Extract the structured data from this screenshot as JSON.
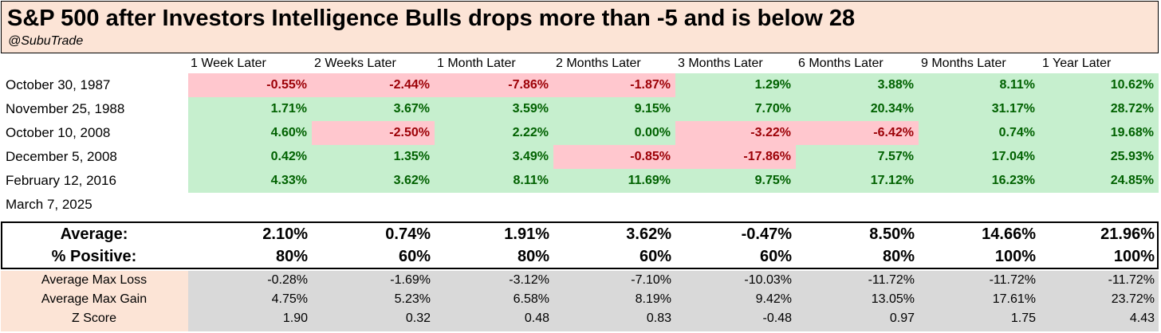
{
  "title": "S&P 500 after Investors Intelligence Bulls drops more than -5 and is below 28",
  "subtitle": "@SubuTrade",
  "chart_data": {
    "type": "table",
    "columns": [
      "1 Week Later",
      "2 Weeks Later",
      "1 Month Later",
      "2 Months Later",
      "3 Months Later",
      "6 Months Later",
      "9 Months Later",
      "1 Year Later"
    ],
    "rows": [
      {
        "date": "October 30, 1987",
        "values": [
          "-0.55%",
          "-2.44%",
          "-7.86%",
          "-1.87%",
          "1.29%",
          "3.88%",
          "8.11%",
          "10.62%"
        ]
      },
      {
        "date": "November 25, 1988",
        "values": [
          "1.71%",
          "3.67%",
          "3.59%",
          "9.15%",
          "7.70%",
          "20.34%",
          "31.17%",
          "28.72%"
        ]
      },
      {
        "date": "October 10, 2008",
        "values": [
          "4.60%",
          "-2.50%",
          "2.22%",
          "0.00%",
          "-3.22%",
          "-6.42%",
          "0.74%",
          "19.68%"
        ]
      },
      {
        "date": "December 5, 2008",
        "values": [
          "0.42%",
          "1.35%",
          "3.49%",
          "-0.85%",
          "-17.86%",
          "7.57%",
          "17.04%",
          "25.93%"
        ]
      },
      {
        "date": "February 12, 2016",
        "values": [
          "4.33%",
          "3.62%",
          "8.11%",
          "11.69%",
          "9.75%",
          "17.12%",
          "16.23%",
          "24.85%"
        ]
      },
      {
        "date": "March 7, 2025",
        "values": [
          "",
          "",
          "",
          "",
          "",
          "",
          "",
          ""
        ]
      }
    ],
    "summary": [
      {
        "label": "Average:",
        "values": [
          "2.10%",
          "0.74%",
          "1.91%",
          "3.62%",
          "-0.47%",
          "8.50%",
          "14.66%",
          "21.96%"
        ]
      },
      {
        "label": "% Positive:",
        "values": [
          "80%",
          "60%",
          "80%",
          "60%",
          "60%",
          "80%",
          "100%",
          "100%"
        ]
      }
    ],
    "stats": [
      {
        "label": "Average Max Loss",
        "values": [
          "-0.28%",
          "-1.69%",
          "-3.12%",
          "-7.10%",
          "-10.03%",
          "-11.72%",
          "-11.72%",
          "-11.72%"
        ]
      },
      {
        "label": "Average Max Gain",
        "values": [
          "4.75%",
          "5.23%",
          "6.58%",
          "8.19%",
          "9.42%",
          "13.05%",
          "17.61%",
          "23.72%"
        ]
      },
      {
        "label": "Z Score",
        "values": [
          "1.90",
          "0.32",
          "0.48",
          "0.83",
          "-0.48",
          "0.97",
          "1.75",
          "4.43"
        ]
      }
    ],
    "colors": {
      "positive_fill": "#c6efce",
      "positive_text": "#006100",
      "negative_fill": "#ffc7ce",
      "negative_text": "#9c0006",
      "header_fill": "#fce4d6",
      "stats_fill": "#d9d9d9"
    }
  }
}
